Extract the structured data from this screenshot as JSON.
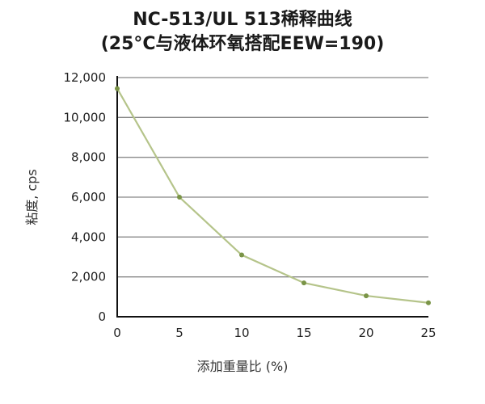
{
  "chart_data": {
    "type": "line",
    "title_line1": "NC-513/UL 513稀释曲线",
    "title_line2": "(25°C与液体环氧搭配EEW=190)",
    "xlabel": "添加重量比 (%)",
    "ylabel": "粘度, cps",
    "x": [
      0,
      5,
      10,
      15,
      20,
      25
    ],
    "values": [
      11450,
      6000,
      3100,
      1700,
      1050,
      700
    ],
    "xlim": [
      0,
      25
    ],
    "ylim": [
      0,
      12000
    ],
    "xticks": [
      "0",
      "5",
      "10",
      "15",
      "20",
      "25"
    ],
    "yticks": [
      "0",
      "2,000",
      "4,000",
      "6,000",
      "8,000",
      "10,000",
      "12,000"
    ],
    "grid": "horizontal",
    "line_color": "#b5c48a",
    "marker_color": "#7a9447"
  }
}
